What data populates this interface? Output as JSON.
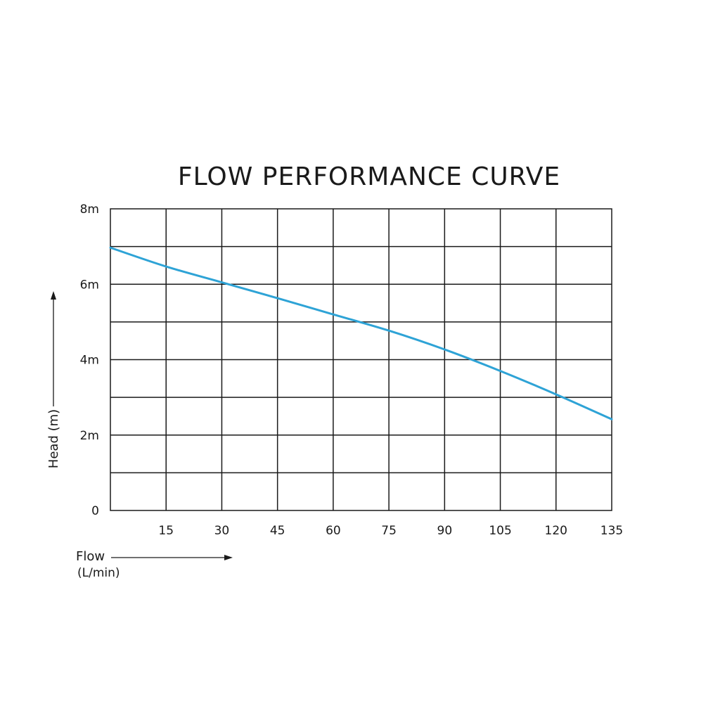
{
  "chart_data": {
    "type": "line",
    "title": "FLOW PERFORMANCE CURVE",
    "xlabel": "Flow",
    "xlabel_unit": "(L/min)",
    "ylabel": "Head (m)",
    "xlim": [
      0,
      135
    ],
    "ylim": [
      0,
      8
    ],
    "x_ticks": [
      15,
      30,
      45,
      60,
      75,
      90,
      105,
      120,
      135
    ],
    "x_tick_labels": [
      "15",
      "30",
      "45",
      "60",
      "75",
      "90",
      "105",
      "120",
      "135"
    ],
    "y_tick_labels": [
      {
        "value": 0,
        "label": "0"
      },
      {
        "value": 2,
        "label": "2m"
      },
      {
        "value": 4,
        "label": "4m"
      },
      {
        "value": 6,
        "label": "6m"
      },
      {
        "value": 8,
        "label": "8m"
      }
    ],
    "grid_x": [
      15,
      30,
      45,
      60,
      75,
      90,
      105,
      120
    ],
    "grid_y": [
      1,
      2,
      3,
      4,
      5,
      6,
      7
    ],
    "grid": true,
    "line_color": "#2ea3d6",
    "series": [
      {
        "x": [
          0,
          15,
          30,
          45,
          60,
          75,
          90,
          105,
          120,
          135
        ],
        "y": [
          6.97,
          6.47,
          6.05,
          5.63,
          5.2,
          4.77,
          4.27,
          3.7,
          3.08,
          2.42
        ]
      }
    ]
  }
}
